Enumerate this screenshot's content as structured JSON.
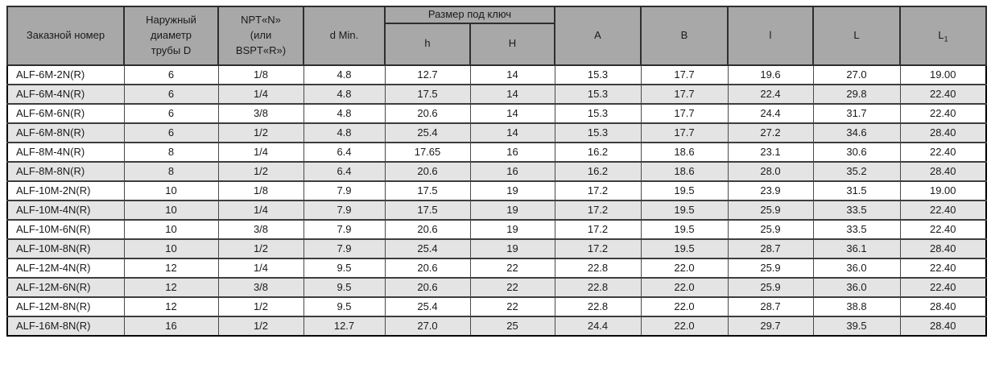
{
  "colors": {
    "header_bg": "#a8a8a8",
    "row_alt_bg": "#e5e4e4",
    "border_outer": "#000000",
    "border_inner": "#4a4a4a",
    "text": "#1a1a1a"
  },
  "table": {
    "header": {
      "order_number": "Заказной номер",
      "outer_diameter": "Наружный\nдиаметр\nтрубы D",
      "npt": "NPT«N»\n(или\nBSPT«R»)",
      "d_min": "d Min.",
      "wrench_group": "Размер под ключ",
      "h_small": "h",
      "h_big": "H",
      "a": "A",
      "b": "B",
      "l_small": "l",
      "l_big": "L",
      "l1_base": "L",
      "l1_sub": "1"
    },
    "rows": [
      [
        "ALF-6M-2N(R)",
        "6",
        "1/8",
        "4.8",
        "12.7",
        "14",
        "15.3",
        "17.7",
        "19.6",
        "27.0",
        "19.00"
      ],
      [
        "ALF-6M-4N(R)",
        "6",
        "1/4",
        "4.8",
        "17.5",
        "14",
        "15.3",
        "17.7",
        "22.4",
        "29.8",
        "22.40"
      ],
      [
        "ALF-6M-6N(R)",
        "6",
        "3/8",
        "4.8",
        "20.6",
        "14",
        "15.3",
        "17.7",
        "24.4",
        "31.7",
        "22.40"
      ],
      [
        "ALF-6M-8N(R)",
        "6",
        "1/2",
        "4.8",
        "25.4",
        "14",
        "15.3",
        "17.7",
        "27.2",
        "34.6",
        "28.40"
      ],
      [
        "ALF-8M-4N(R)",
        "8",
        "1/4",
        "6.4",
        "17.65",
        "16",
        "16.2",
        "18.6",
        "23.1",
        "30.6",
        "22.40"
      ],
      [
        "ALF-8M-8N(R)",
        "8",
        "1/2",
        "6.4",
        "20.6",
        "16",
        "16.2",
        "18.6",
        "28.0",
        "35.2",
        "28.40"
      ],
      [
        "ALF-10M-2N(R)",
        "10",
        "1/8",
        "7.9",
        "17.5",
        "19",
        "17.2",
        "19.5",
        "23.9",
        "31.5",
        "19.00"
      ],
      [
        "ALF-10M-4N(R)",
        "10",
        "1/4",
        "7.9",
        "17.5",
        "19",
        "17.2",
        "19.5",
        "25.9",
        "33.5",
        "22.40"
      ],
      [
        "ALF-10M-6N(R)",
        "10",
        "3/8",
        "7.9",
        "20.6",
        "19",
        "17.2",
        "19.5",
        "25.9",
        "33.5",
        "22.40"
      ],
      [
        "ALF-10M-8N(R)",
        "10",
        "1/2",
        "7.9",
        "25.4",
        "19",
        "17.2",
        "19.5",
        "28.7",
        "36.1",
        "28.40"
      ],
      [
        "ALF-12M-4N(R)",
        "12",
        "1/4",
        "9.5",
        "20.6",
        "22",
        "22.8",
        "22.0",
        "25.9",
        "36.0",
        "22.40"
      ],
      [
        "ALF-12M-6N(R)",
        "12",
        "3/8",
        "9.5",
        "20.6",
        "22",
        "22.8",
        "22.0",
        "25.9",
        "36.0",
        "22.40"
      ],
      [
        "ALF-12M-8N(R)",
        "12",
        "1/2",
        "9.5",
        "25.4",
        "22",
        "22.8",
        "22.0",
        "28.7",
        "38.8",
        "28.40"
      ],
      [
        "ALF-16M-8N(R)",
        "16",
        "1/2",
        "12.7",
        "27.0",
        "25",
        "24.4",
        "22.0",
        "29.7",
        "39.5",
        "28.40"
      ]
    ]
  }
}
